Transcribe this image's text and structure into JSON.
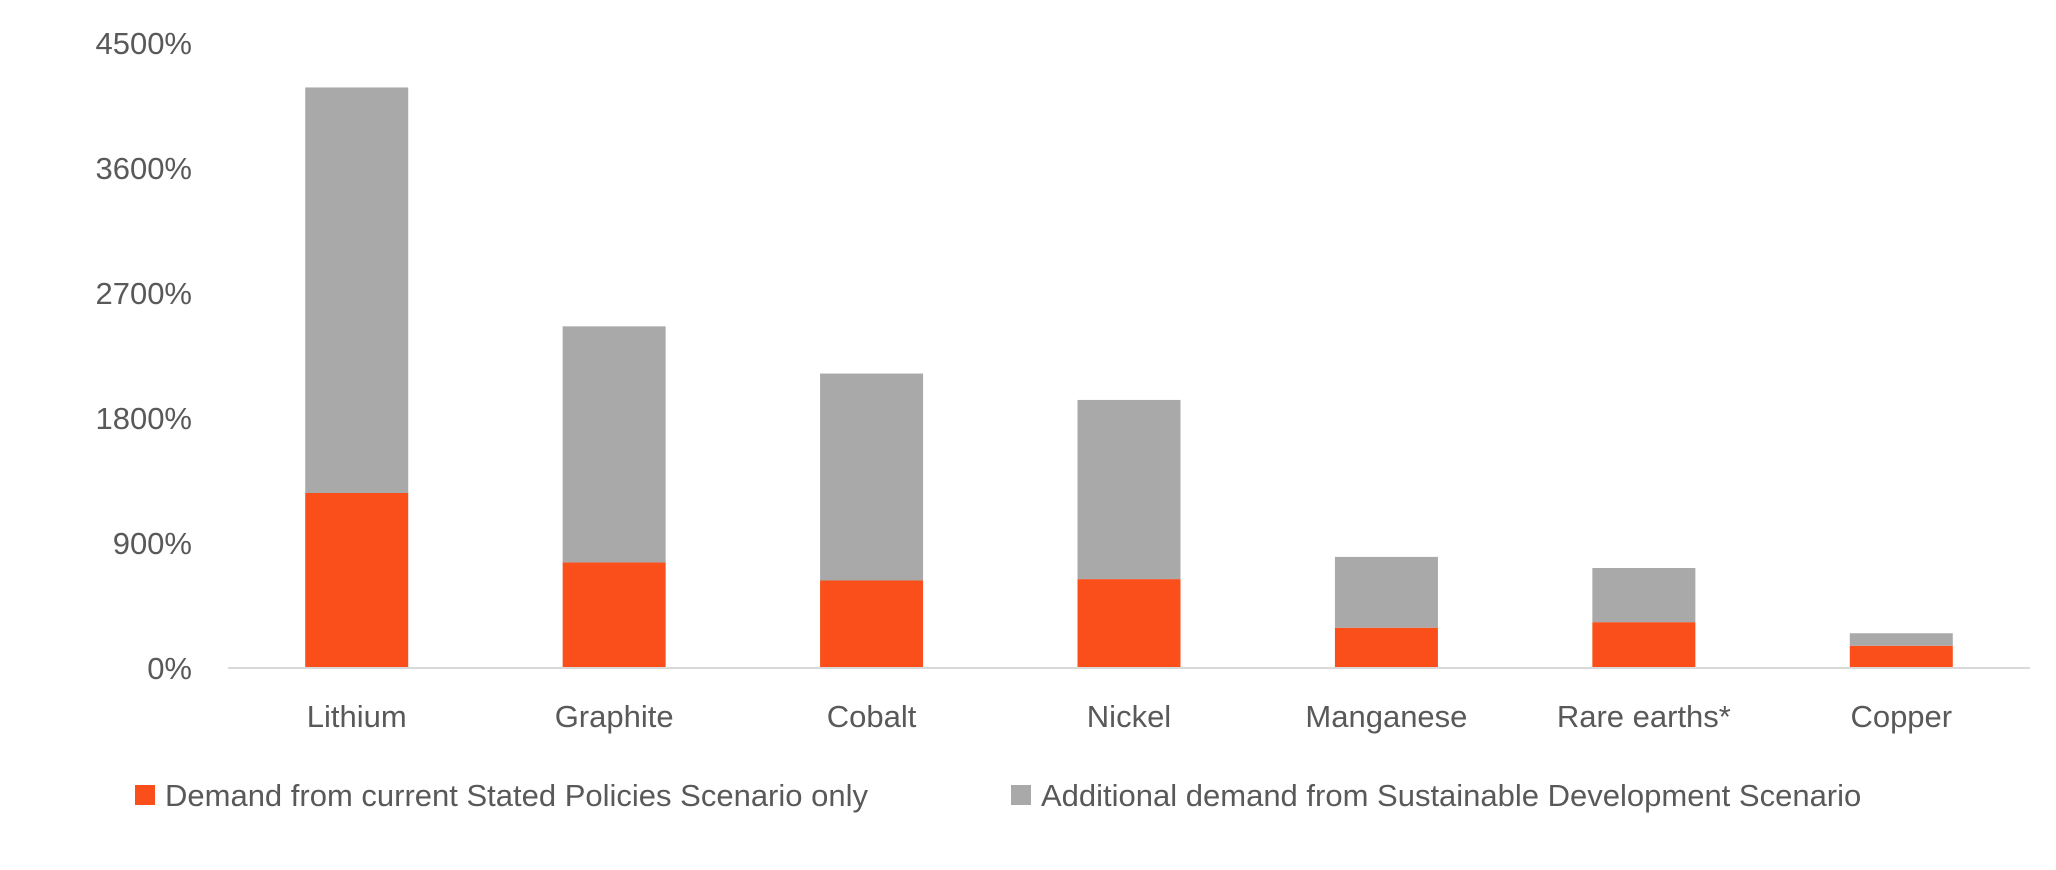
{
  "chart_data": {
    "type": "bar",
    "stacked": true,
    "categories": [
      "Lithium",
      "Graphite",
      "Cobalt",
      "Nickel",
      "Manganese",
      "Rare earths*",
      "Copper"
    ],
    "series": [
      {
        "name": "Demand from current Stated Policies Scenario only",
        "color": "#fa4f1a",
        "values": [
          1260,
          760,
          630,
          640,
          290,
          330,
          160
        ]
      },
      {
        "name": "Additional demand from Sustainable Development Scenario",
        "color": "#a9a9a9",
        "values": [
          2920,
          1700,
          1490,
          1290,
          510,
          390,
          90
        ]
      }
    ],
    "ylim": [
      0,
      4500
    ],
    "yticks": [
      "0%",
      "900%",
      "1800%",
      "2700%",
      "3600%",
      "4500%"
    ],
    "ytick_values": [
      0,
      900,
      1800,
      2700,
      3600,
      4500
    ],
    "grid": false,
    "legend_position": "bottom"
  }
}
